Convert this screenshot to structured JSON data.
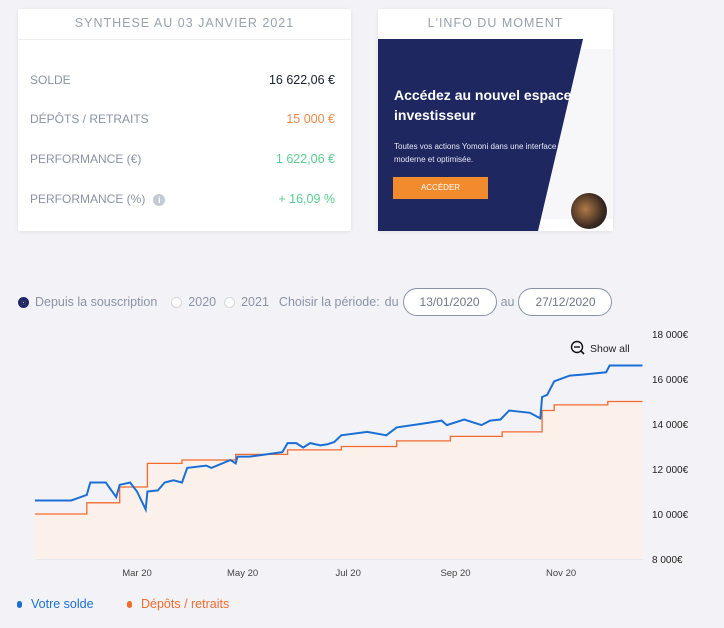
{
  "summary": {
    "title": "SYNTHESE AU 03 JANVIER 2021",
    "rows": [
      {
        "label": "SOLDE",
        "value": "16 622,06 €",
        "color": "#1b1f2b"
      },
      {
        "label": "DÉPÔTS / RETRAITS",
        "value": "15 000 €",
        "color": "#f08a4b"
      },
      {
        "label": "PERFORMANCE (€)",
        "value": "1 622,06 €",
        "color": "#5ccf8f"
      },
      {
        "label": "PERFORMANCE (%)",
        "value": "+ 16,09 %",
        "color": "#5ccf8f",
        "info_icon": "info-icon"
      }
    ]
  },
  "info": {
    "title": "L'INFO DU MOMENT",
    "headline": "Accédez au nouvel espace investisseur",
    "text": "Toutes vos actions Yomoni dans une interface moderne et optimisée.",
    "button": "ACCÉDER"
  },
  "controls": {
    "options": [
      {
        "label": "Depuis la souscription",
        "selected": true
      },
      {
        "label": "2020",
        "selected": false
      },
      {
        "label": "2021",
        "selected": false
      }
    ],
    "period_label": "Choisir la période:",
    "from_label": "du",
    "from": "13/01/2020",
    "to_label": "au",
    "to": "27/12/2020"
  },
  "chart_data": {
    "type": "line",
    "show_all": "Show all",
    "ylim": [
      8000,
      18000
    ],
    "yticks": [
      "18 000€",
      "16 000€",
      "14 000€",
      "12 000€",
      "10 000€",
      "8 000€"
    ],
    "ytick_values": [
      18000,
      16000,
      14000,
      12000,
      10000,
      8000
    ],
    "xticks": [
      "Mar 20",
      "May 20",
      "Jul 20",
      "Sep 20",
      "Nov 20"
    ],
    "xtick_dates": [
      "2020-03-01",
      "2020-05-01",
      "2020-07-01",
      "2020-09-01",
      "2020-11-01"
    ],
    "series": [
      {
        "name": "Votre solde",
        "color": "#1a6fd6",
        "points": [
          [
            "2020-01-02",
            10600
          ],
          [
            "2020-01-23",
            10600
          ],
          [
            "2020-02-01",
            10850
          ],
          [
            "2020-02-03",
            11400
          ],
          [
            "2020-02-12",
            11400
          ],
          [
            "2020-02-18",
            10750
          ],
          [
            "2020-02-20",
            11300
          ],
          [
            "2020-02-26",
            11400
          ],
          [
            "2020-03-01",
            11000
          ],
          [
            "2020-03-06",
            10200
          ],
          [
            "2020-03-07",
            11000
          ],
          [
            "2020-03-13",
            11050
          ],
          [
            "2020-03-17",
            11400
          ],
          [
            "2020-03-22",
            11500
          ],
          [
            "2020-03-27",
            11400
          ],
          [
            "2020-03-30",
            12050
          ],
          [
            "2020-04-10",
            12150
          ],
          [
            "2020-04-13",
            12050
          ],
          [
            "2020-04-24",
            12400
          ],
          [
            "2020-04-27",
            12250
          ],
          [
            "2020-04-28",
            12550
          ],
          [
            "2020-05-05",
            12550
          ],
          [
            "2020-05-10",
            12600
          ],
          [
            "2020-05-24",
            12750
          ],
          [
            "2020-05-27",
            13150
          ],
          [
            "2020-06-01",
            13150
          ],
          [
            "2020-06-05",
            12950
          ],
          [
            "2020-06-09",
            13150
          ],
          [
            "2020-06-15",
            13050
          ],
          [
            "2020-06-19",
            13100
          ],
          [
            "2020-06-23",
            13200
          ],
          [
            "2020-06-27",
            13500
          ],
          [
            "2020-07-12",
            13650
          ],
          [
            "2020-07-23",
            13500
          ],
          [
            "2020-07-29",
            13850
          ],
          [
            "2020-08-16",
            14050
          ],
          [
            "2020-08-24",
            14150
          ],
          [
            "2020-08-27",
            13950
          ],
          [
            "2020-09-06",
            14200
          ],
          [
            "2020-09-16",
            13950
          ],
          [
            "2020-09-21",
            14150
          ],
          [
            "2020-09-27",
            14200
          ],
          [
            "2020-10-02",
            14600
          ],
          [
            "2020-10-14",
            14500
          ],
          [
            "2020-10-20",
            14250
          ],
          [
            "2020-10-21",
            15200
          ],
          [
            "2020-10-24",
            15300
          ],
          [
            "2020-10-28",
            15900
          ],
          [
            "2020-11-06",
            16150
          ],
          [
            "2020-11-14",
            16200
          ],
          [
            "2020-11-27",
            16300
          ],
          [
            "2020-11-29",
            16600
          ],
          [
            "2020-12-18",
            16600
          ]
        ]
      },
      {
        "name": "Dépôts / retraits",
        "color": "#f26b2e",
        "step": true,
        "points": [
          [
            "2020-01-02",
            10000
          ],
          [
            "2020-02-01",
            10500
          ],
          [
            "2020-02-20",
            11200
          ],
          [
            "2020-03-07",
            12250
          ],
          [
            "2020-03-27",
            12400
          ],
          [
            "2020-04-27",
            12650
          ],
          [
            "2020-05-27",
            12850
          ],
          [
            "2020-06-27",
            13000
          ],
          [
            "2020-07-29",
            13250
          ],
          [
            "2020-08-29",
            13450
          ],
          [
            "2020-09-28",
            13650
          ],
          [
            "2020-10-21",
            14600
          ],
          [
            "2020-10-28",
            14850
          ],
          [
            "2020-11-28",
            15000
          ],
          [
            "2020-12-18",
            15000
          ]
        ]
      }
    ]
  }
}
